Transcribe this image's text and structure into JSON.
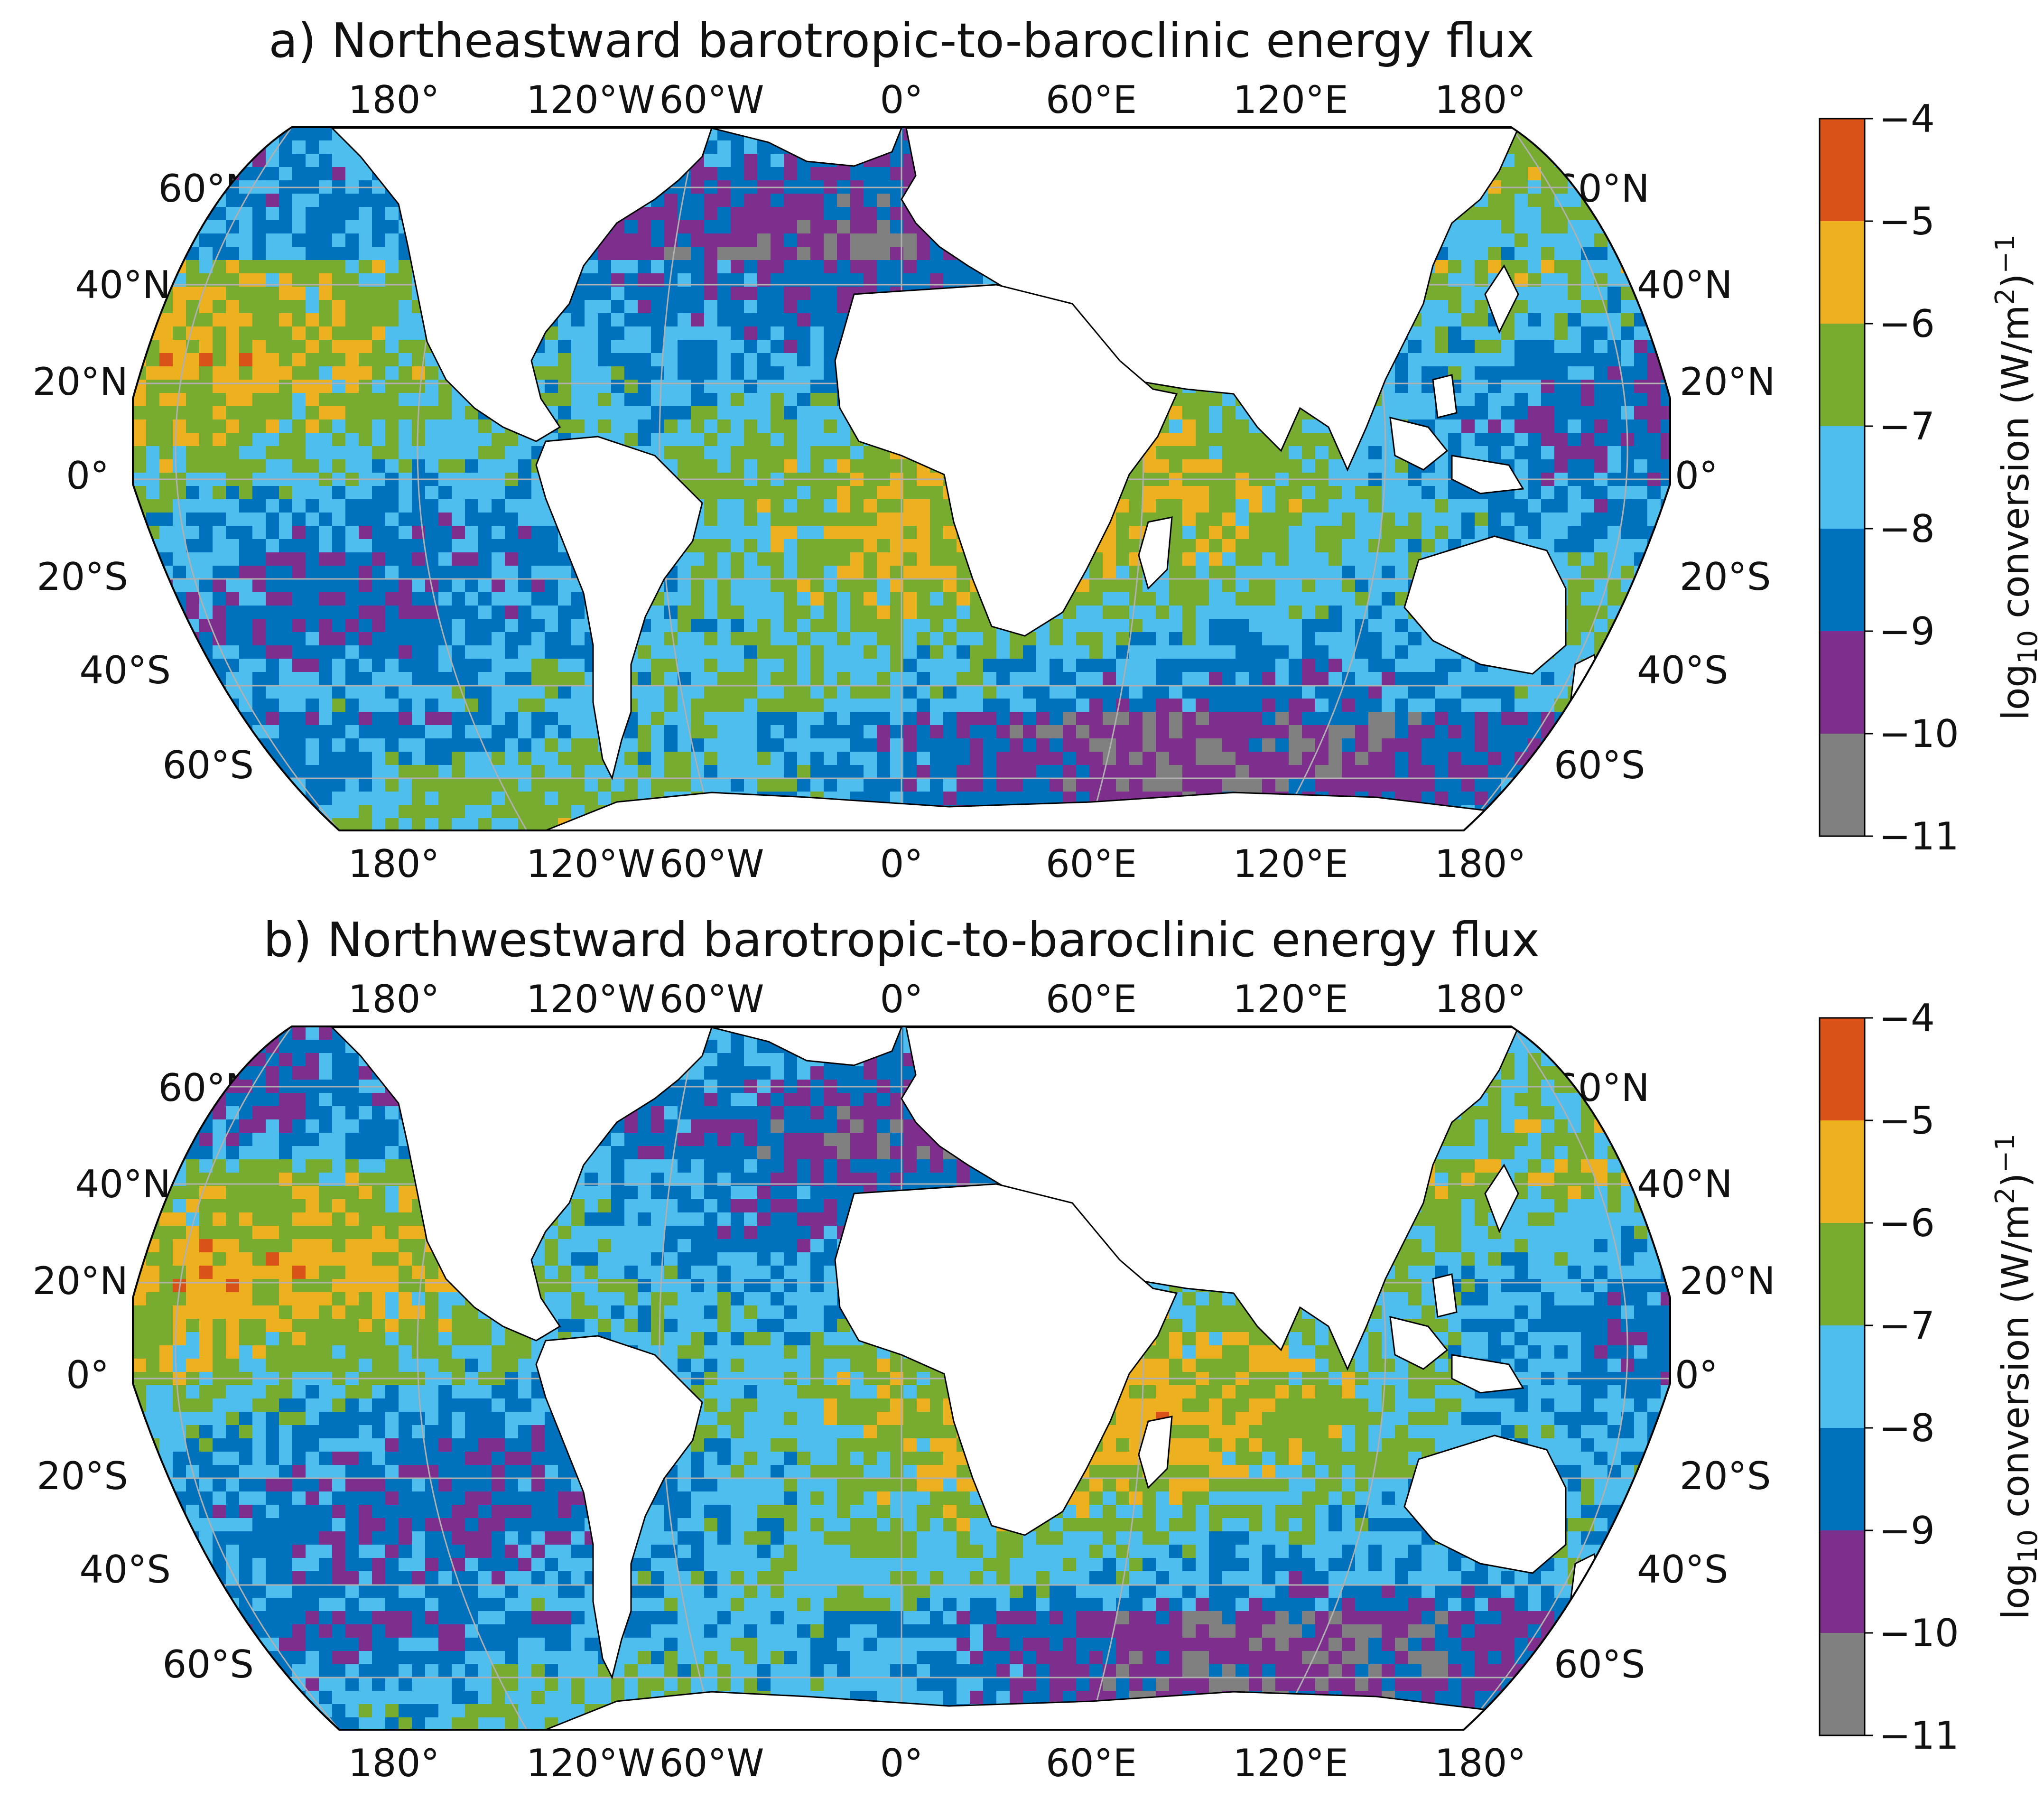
{
  "panels": [
    {
      "id": "a",
      "title": "a) Northeastward barotropic-to-baroclinic energy flux",
      "lon_labels": [
        "180°",
        "120°W",
        "60°W",
        "0°",
        "60°E",
        "120°E",
        "180°"
      ],
      "lat_labels_left": [
        "60°N",
        "40°N",
        "20°N",
        "0°",
        "20°S",
        "40°S",
        "60°S"
      ],
      "lat_labels_right": [
        "60°N",
        "40°N",
        "20°N",
        "0°",
        "20°S",
        "40°S",
        "60°S"
      ],
      "colorbar": {
        "label": "log10 conversion (W/m2)-1",
        "ticks": [
          "−4",
          "−5",
          "−6",
          "−7",
          "−8",
          "−9",
          "−10",
          "−11"
        ]
      }
    },
    {
      "id": "b",
      "title": "b) Northwestward barotropic-to-baroclinic energy flux",
      "lon_labels": [
        "180°",
        "120°W",
        "60°W",
        "0°",
        "60°E",
        "120°E",
        "180°"
      ],
      "lat_labels_left": [
        "60°N",
        "40°N",
        "20°N",
        "0°",
        "20°S",
        "40°S",
        "60°S"
      ],
      "lat_labels_right": [
        "60°N",
        "40°N",
        "20°N",
        "0°",
        "20°S",
        "40°S",
        "60°S"
      ],
      "colorbar": {
        "label": "log10 conversion (W/m2)-1",
        "ticks": [
          "−4",
          "−5",
          "−6",
          "−7",
          "−8",
          "−9",
          "−10",
          "−11"
        ]
      }
    }
  ],
  "colorbar_label_parts": {
    "prefix": "log",
    "sub": "10",
    "mid": " conversion (W/m",
    "sup1": "2",
    "end": ")",
    "sup2": "−1"
  },
  "colors": {
    "bin_-4_-5": "#d95319",
    "bin_-5_-6": "#edb120",
    "bin_-6_-7": "#77ac30",
    "bin_-7_-8": "#4dbeee",
    "bin_-8_-9": "#0072bd",
    "bin_-9_-10": "#7e2f8e",
    "bin_-10_-11": "#808080",
    "land": "#ffffff",
    "graticule": "#b0b0b0"
  }
}
